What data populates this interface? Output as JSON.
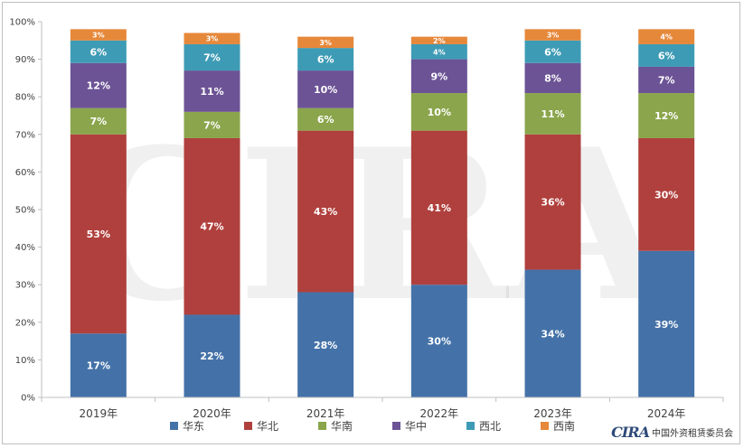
{
  "chart_data": {
    "type": "bar",
    "stacked": true,
    "percent": true,
    "categories": [
      "2019年",
      "2020年",
      "2021年",
      "2022年",
      "2023年",
      "2024年"
    ],
    "series": [
      {
        "name": "华东",
        "color": "#4472a8",
        "values": [
          17,
          22,
          28,
          30,
          34,
          39
        ],
        "labels": [
          "17%",
          "22%",
          "28%",
          "30%",
          "34%",
          "39%"
        ]
      },
      {
        "name": "华北",
        "color": "#b0403d",
        "values": [
          53,
          47,
          43,
          41,
          36,
          30
        ],
        "labels": [
          "53%",
          "47%",
          "43%",
          "41%",
          "36%",
          "30%"
        ]
      },
      {
        "name": "华南",
        "color": "#8aa54b",
        "values": [
          7,
          7,
          6,
          10,
          11,
          12
        ],
        "labels": [
          "7%",
          "7%",
          "6%",
          "10%",
          "11%",
          "12%"
        ]
      },
      {
        "name": "华中",
        "color": "#6c5395",
        "values": [
          12,
          11,
          10,
          9,
          8,
          7
        ],
        "labels": [
          "12%",
          "11%",
          "10%",
          "9%",
          "8%",
          "7%"
        ]
      },
      {
        "name": "西北",
        "color": "#3e9bb5",
        "values": [
          6,
          7,
          6,
          4,
          6,
          6
        ],
        "labels": [
          "6%",
          "7%",
          "6%",
          "4%",
          "6%",
          "6%"
        ]
      },
      {
        "name": "西南",
        "color": "#e6883a",
        "values": [
          3,
          3,
          3,
          2,
          3,
          4
        ],
        "labels": [
          "3%",
          "3%",
          "3%",
          "2%",
          "3%",
          "4%"
        ]
      }
    ],
    "y_ticks": [
      "0%",
      "10%",
      "20%",
      "30%",
      "40%",
      "50%",
      "60%",
      "70%",
      "80%",
      "90%",
      "100%"
    ],
    "ylim": [
      0,
      100
    ],
    "legend_position": "bottom",
    "grid": false
  },
  "watermark": {
    "text": "CIRA"
  },
  "footer": {
    "logo_mark": "CIRA",
    "organization": "中国外资租赁委员会"
  }
}
